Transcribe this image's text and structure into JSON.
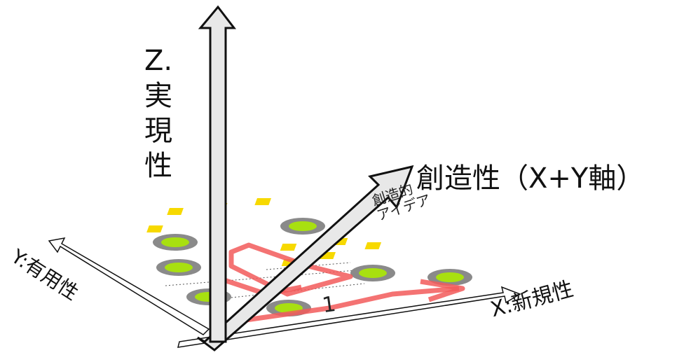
{
  "labels": {
    "z_axis": [
      "Z.",
      "実",
      "現",
      "性"
    ],
    "creativity": "創造性（X+Y軸）",
    "x_axis": "X:新規性",
    "y_axis": "Y:有用性",
    "idea_line1": "創造的",
    "idea_line2": "アイデア",
    "step_mark": "1"
  },
  "colors": {
    "arrow_fill": "#e8e8e8",
    "arrow_stroke": "#111111",
    "path_red": "#f25a5a",
    "dot_green": "#a8e010",
    "dot_gray": "#8a8a8a",
    "square_yellow": "#f7d900"
  }
}
